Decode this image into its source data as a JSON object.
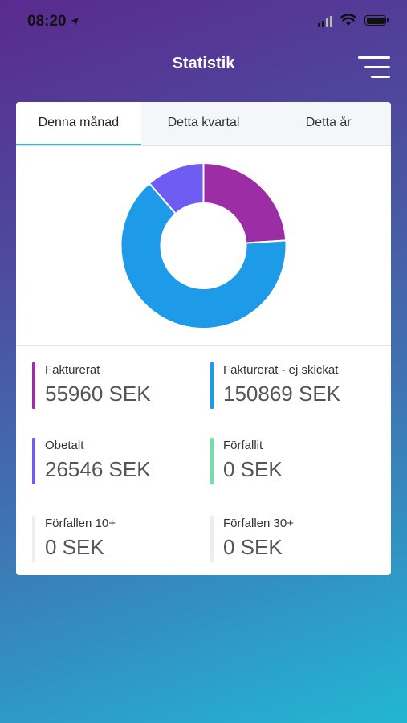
{
  "status_bar": {
    "time": "08:20"
  },
  "header": {
    "title": "Statistik"
  },
  "tabs": [
    {
      "label": "Denna månad",
      "active": true
    },
    {
      "label": "Detta kvartal",
      "active": false
    },
    {
      "label": "Detta år",
      "active": false
    }
  ],
  "chart_data": {
    "type": "pie",
    "categories": [
      "Fakturerat",
      "Fakturerat - ej skickat",
      "Obetalt"
    ],
    "values": [
      55960,
      150869,
      26546
    ],
    "colors": [
      "#9b2ea5",
      "#1e9be8",
      "#6e5cf3"
    ]
  },
  "stats": [
    {
      "label": "Fakturerat",
      "value": "55960 SEK",
      "color": "#9b2ea5"
    },
    {
      "label": "Fakturerat - ej skickat",
      "value": "150869 SEK",
      "color": "#1e9be8"
    },
    {
      "label": "Obetalt",
      "value": "26546 SEK",
      "color": "#6e5cf3"
    },
    {
      "label": "Förfallit",
      "value": "0 SEK",
      "color": "#6fe0a8"
    },
    {
      "label": "Förfallen 10+",
      "value": "0 SEK",
      "color": "#eeeeee"
    },
    {
      "label": "Förfallen 30+",
      "value": "0 SEK",
      "color": "#eeeeee"
    }
  ]
}
